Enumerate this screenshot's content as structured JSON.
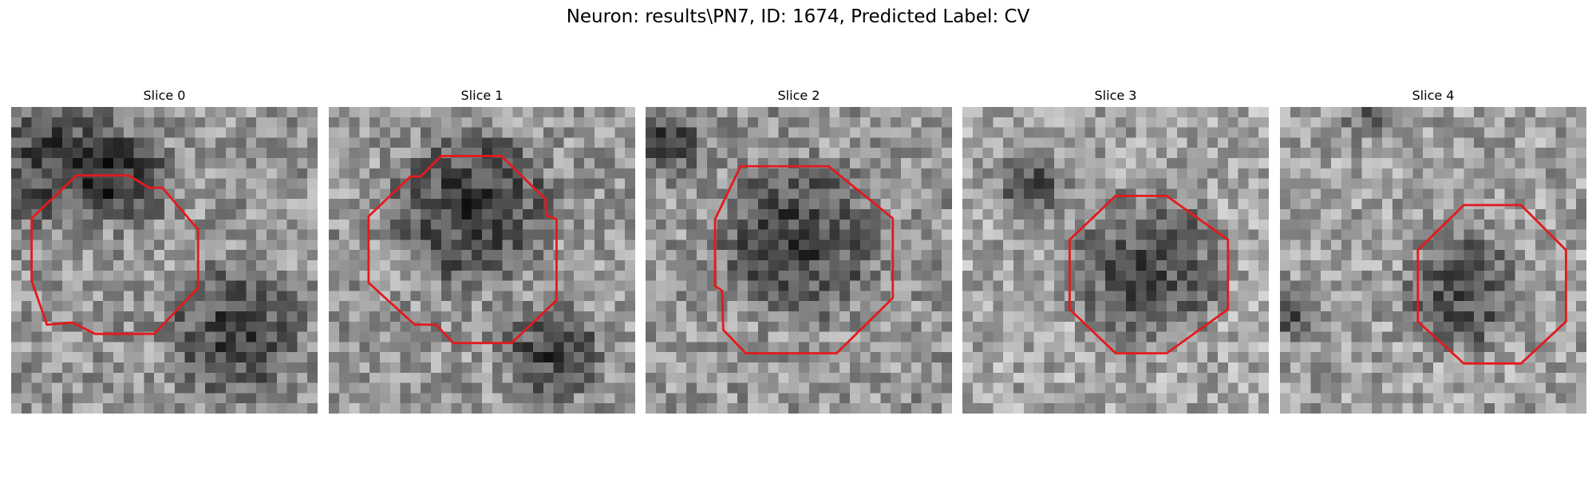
{
  "figure": {
    "title": "Neuron: results\\PN7, ID: 1674, Predicted Label: CV"
  },
  "slices": [
    {
      "title": "Slice 0",
      "base_gray": 150,
      "dark_spots": [
        [
          4,
          5,
          6
        ],
        [
          11,
          7,
          4
        ],
        [
          22,
          22,
          6
        ]
      ],
      "outline_color": "#e31a1c"
    },
    {
      "title": "Slice 1",
      "base_gray": 150,
      "dark_spots": [
        [
          14,
          10,
          7
        ],
        [
          22,
          24,
          4
        ]
      ],
      "outline_color": "#e31a1c"
    },
    {
      "title": "Slice 2",
      "base_gray": 150,
      "dark_spots": [
        [
          15,
          13,
          7
        ],
        [
          2,
          3,
          3
        ]
      ],
      "outline_color": "#e31a1c"
    },
    {
      "title": "Slice 3",
      "base_gray": 165,
      "dark_spots": [
        [
          18,
          16,
          7
        ],
        [
          7,
          8,
          3
        ]
      ],
      "outline_color": "#e31a1c"
    },
    {
      "title": "Slice 4",
      "base_gray": 160,
      "dark_spots": [
        [
          18,
          18,
          5
        ],
        [
          9,
          0,
          2
        ],
        [
          1,
          20,
          2
        ]
      ],
      "outline_color": "#e31a1c"
    }
  ]
}
